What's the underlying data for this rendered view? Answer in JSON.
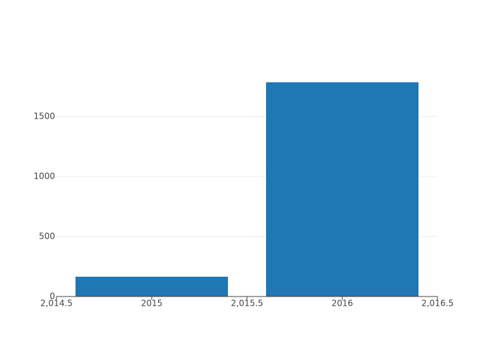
{
  "chart_data": {
    "type": "bar",
    "x": [
      2015,
      2016
    ],
    "values": [
      165,
      1785
    ],
    "color": "#1f77b4",
    "xlim": [
      2014.5,
      2016.5
    ],
    "xticks": [
      {
        "value": 2014.5,
        "label": "2,014.5"
      },
      2015,
      {
        "value": 2015.5,
        "label": "2,015.5"
      },
      2016,
      {
        "value": 2016.5,
        "label": "2,016.5"
      }
    ],
    "ylim": [
      0,
      1882
    ],
    "yticks": [
      0,
      500,
      1000,
      1500
    ],
    "grid": true
  }
}
